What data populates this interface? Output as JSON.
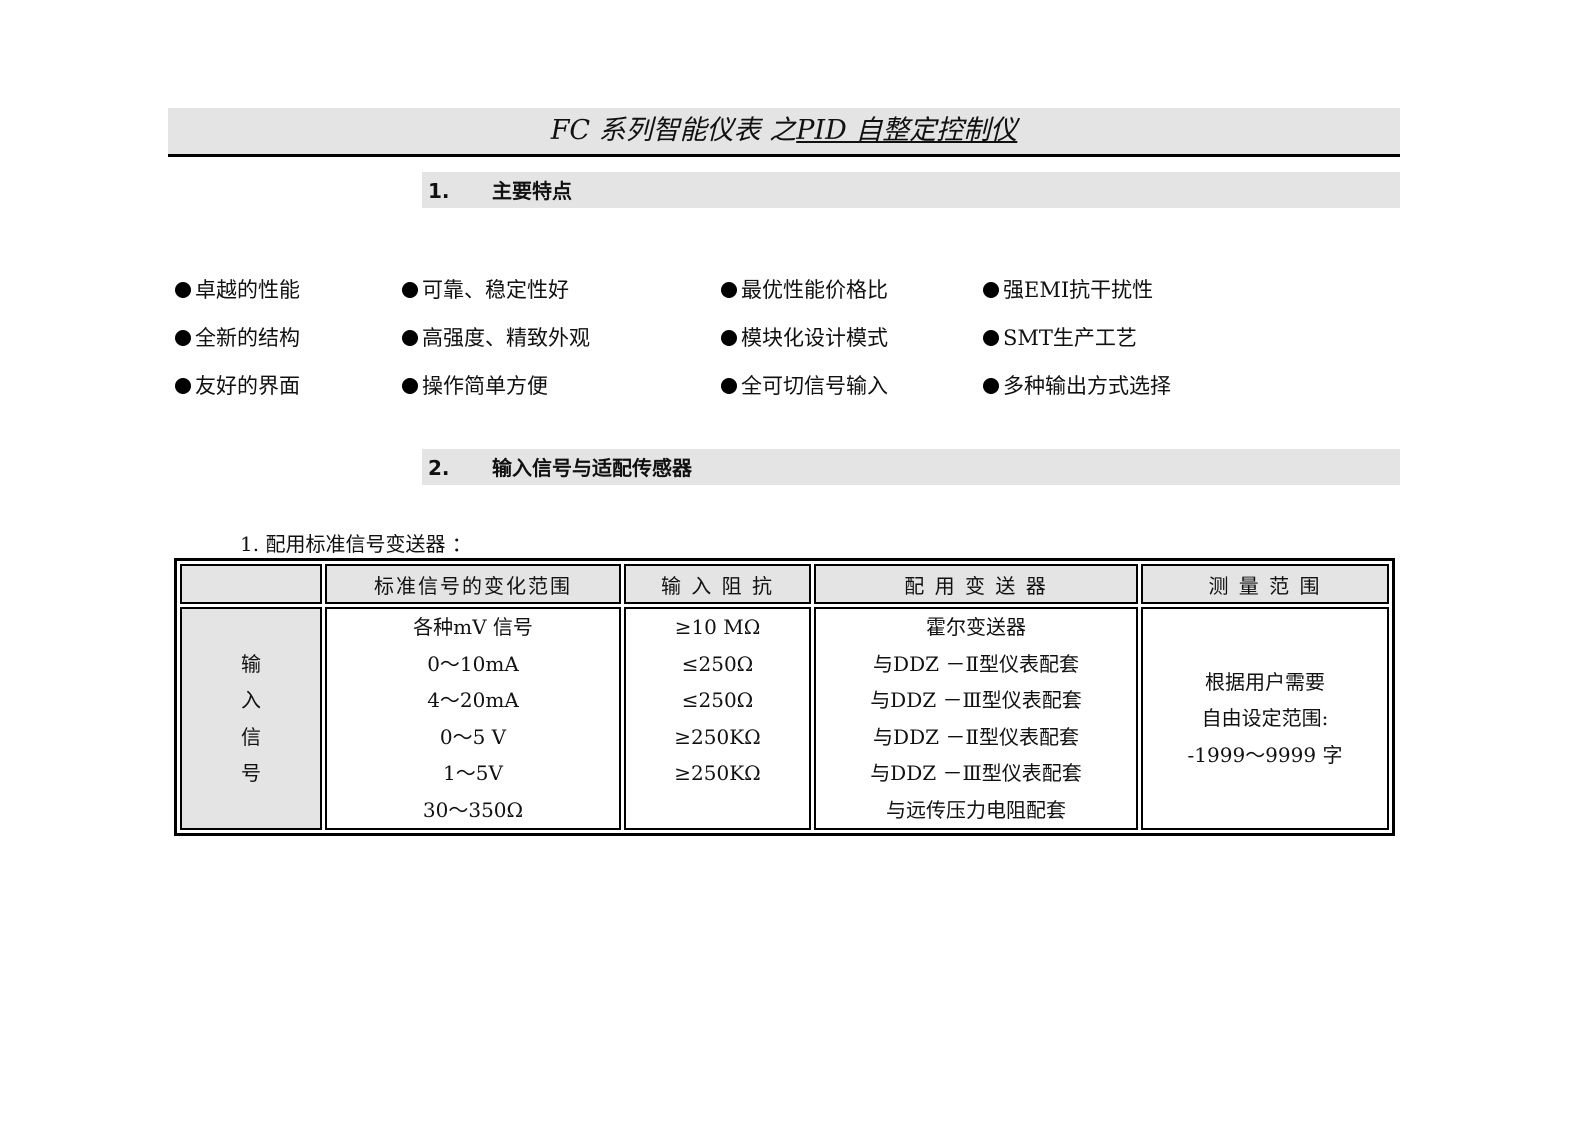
{
  "title": {
    "part1": "FC 系列智能仪表 之 ",
    "part2": "PID 自整定控制仪"
  },
  "sections": [
    {
      "num": "1.",
      "label": "主要特点"
    },
    {
      "num": "2.",
      "label": "输入信号与适配传感器"
    }
  ],
  "features": [
    [
      "卓越的性能",
      "可靠、稳定性好",
      "最优性能价格比",
      "强EMI抗干扰性"
    ],
    [
      "全新的结构",
      "高强度、精致外观",
      "模块化设计模式",
      "SMT生产工艺"
    ],
    [
      "友好的界面",
      "操作简单方便",
      "全可切信号输入",
      "多种输出方式选择"
    ]
  ],
  "subheading": "1. 配用标准信号变送器 ：",
  "table": {
    "headers": [
      "",
      "标准信号的变化范围",
      "输 入 阻 抗",
      "配 用 变 送 器",
      "测 量 范 围"
    ],
    "row_label": [
      "输",
      "入",
      "信",
      "号"
    ],
    "ranges": [
      "各种mV 信号",
      "0～10mA",
      "4～20mA",
      "0～5 V",
      "1～5V",
      "30～350Ω"
    ],
    "impedance": [
      "≥10 MΩ",
      "≤250Ω",
      "≤250Ω",
      "≥250KΩ",
      "≥250KΩ",
      ""
    ],
    "transmitters": [
      "霍尔变送器",
      "与DDZ －Ⅱ型仪表配套",
      "与DDZ －Ⅲ型仪表配套",
      "与DDZ －Ⅱ型仪表配套",
      "与DDZ －Ⅲ型仪表配套",
      "与远传压力电阻配套"
    ],
    "measure": [
      "根据用户需要",
      "自由设定范围:",
      "-1999～9999 字"
    ]
  }
}
